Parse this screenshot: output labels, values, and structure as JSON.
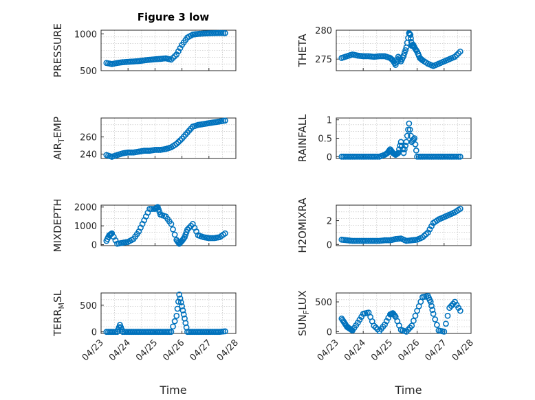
{
  "figure": {
    "title": "Figure 3 low",
    "xlabel": "Time",
    "xtick_labels": [
      "04/23",
      "04/24",
      "04/25",
      "04/26",
      "04/27",
      "04/28"
    ],
    "marker_color": "#0072BD"
  },
  "chart_data": [
    {
      "type": "scatter",
      "ylabel": "PRESSURE",
      "title": "Figure 3 low",
      "xlim": [
        0,
        5
      ],
      "ylim": [
        500,
        1050
      ],
      "yticks": [
        500,
        1000
      ],
      "ytick_labels": [
        "500",
        "1000"
      ],
      "x": [
        0.2,
        0.4,
        0.6,
        0.8,
        1.0,
        1.2,
        1.4,
        1.6,
        1.8,
        2.0,
        2.2,
        2.4,
        2.6,
        2.8,
        3.0,
        3.2,
        3.4,
        3.6,
        3.8,
        4.0,
        4.2,
        4.4,
        4.6
      ],
      "y": [
        605,
        590,
        605,
        615,
        620,
        625,
        630,
        640,
        648,
        655,
        660,
        668,
        650,
        720,
        850,
        950,
        990,
        1000,
        1005,
        1008,
        1010,
        1012,
        1010
      ]
    },
    {
      "type": "scatter",
      "ylabel": "THETA",
      "xlim": [
        0,
        5
      ],
      "ylim": [
        273,
        280
      ],
      "yticks": [
        275,
        280
      ],
      "ytick_labels": [
        "275",
        "280"
      ],
      "x": [
        0.2,
        0.4,
        0.6,
        0.8,
        1.0,
        1.2,
        1.4,
        1.6,
        1.8,
        2.0,
        2.1,
        2.2,
        2.3,
        2.4,
        2.5,
        2.6,
        2.7,
        2.75,
        2.8,
        2.85,
        2.9,
        3.0,
        3.1,
        3.2,
        3.4,
        3.6,
        3.8,
        4.0,
        4.2,
        4.4,
        4.6
      ],
      "y": [
        275.2,
        275.5,
        275.8,
        275.6,
        275.5,
        275.5,
        275.4,
        275.5,
        275.5,
        275.2,
        274.8,
        274.0,
        275.4,
        274.6,
        275.6,
        277.0,
        279.5,
        279.2,
        277.3,
        277.5,
        277.0,
        276.3,
        275.2,
        274.8,
        274.2,
        273.8,
        274.2,
        274.6,
        275.0,
        275.4,
        276.3
      ]
    },
    {
      "type": "scatter",
      "ylabel": "AIR_TEMP",
      "ylabel_parts": [
        "AIR",
        "T",
        "EMP"
      ],
      "xlim": [
        0,
        5
      ],
      "ylim": [
        235,
        282
      ],
      "yticks": [
        240,
        260
      ],
      "ytick_labels": [
        "240",
        "260"
      ],
      "x": [
        0.2,
        0.4,
        0.6,
        0.8,
        1.0,
        1.2,
        1.4,
        1.6,
        1.8,
        2.0,
        2.2,
        2.4,
        2.6,
        2.8,
        3.0,
        3.2,
        3.4,
        3.6,
        3.8,
        4.0,
        4.2,
        4.4,
        4.6
      ],
      "y": [
        239,
        237,
        239,
        241,
        242,
        242,
        243,
        244,
        244,
        245,
        245,
        246,
        248,
        252,
        258,
        265,
        272,
        274,
        275,
        276,
        277,
        278,
        279
      ]
    },
    {
      "type": "scatter",
      "ylabel": "RAINFALL",
      "xlim": [
        0,
        5
      ],
      "ylim": [
        -0.05,
        1.05
      ],
      "yticks": [
        0,
        0.5,
        1
      ],
      "ytick_labels": [
        "0",
        "0.5",
        "1"
      ],
      "x": [
        0.2,
        0.4,
        0.6,
        0.8,
        1.0,
        1.2,
        1.4,
        1.6,
        1.8,
        1.9,
        2.0,
        2.1,
        2.2,
        2.3,
        2.4,
        2.5,
        2.6,
        2.7,
        2.8,
        2.9,
        3.0,
        3.2,
        3.4,
        3.6,
        3.8,
        4.0,
        4.2,
        4.4,
        4.6
      ],
      "y": [
        0,
        0,
        0,
        0,
        0,
        0,
        0,
        0,
        0.05,
        0.1,
        0.2,
        0.1,
        0.05,
        0.1,
        0.4,
        0.1,
        0.4,
        0.9,
        0.4,
        0.5,
        0,
        0,
        0,
        0,
        0,
        0,
        0,
        0,
        0
      ]
    },
    {
      "type": "scatter",
      "ylabel": "MIXDEPTH",
      "xlim": [
        0,
        5
      ],
      "ylim": [
        -50,
        2100
      ],
      "yticks": [
        0,
        1000,
        2000
      ],
      "ytick_labels": [
        "0",
        "1000",
        "2000"
      ],
      "x": [
        0.2,
        0.3,
        0.4,
        0.6,
        0.8,
        1.0,
        1.2,
        1.4,
        1.6,
        1.8,
        2.0,
        2.1,
        2.2,
        2.4,
        2.6,
        2.8,
        2.9,
        3.0,
        3.1,
        3.2,
        3.4,
        3.6,
        3.8,
        4.0,
        4.2,
        4.4,
        4.6
      ],
      "y": [
        200,
        500,
        600,
        50,
        100,
        150,
        300,
        700,
        1300,
        1900,
        1900,
        2000,
        1600,
        1500,
        1100,
        250,
        50,
        200,
        400,
        800,
        1100,
        500,
        400,
        350,
        350,
        400,
        600
      ]
    },
    {
      "type": "scatter",
      "ylabel": "H2OMIXRA",
      "xlim": [
        0,
        5
      ],
      "ylim": [
        -0.1,
        3.3
      ],
      "yticks": [
        0,
        2
      ],
      "ytick_labels": [
        "0",
        "2"
      ],
      "x": [
        0.2,
        0.4,
        0.6,
        0.8,
        1.0,
        1.2,
        1.4,
        1.6,
        1.8,
        2.0,
        2.2,
        2.4,
        2.6,
        2.8,
        3.0,
        3.2,
        3.4,
        3.6,
        3.8,
        4.0,
        4.2,
        4.4,
        4.6
      ],
      "y": [
        0.4,
        0.35,
        0.3,
        0.3,
        0.3,
        0.3,
        0.3,
        0.3,
        0.35,
        0.35,
        0.45,
        0.5,
        0.3,
        0.35,
        0.4,
        0.6,
        1.0,
        1.8,
        2.1,
        2.3,
        2.5,
        2.7,
        3.0
      ]
    },
    {
      "type": "scatter",
      "ylabel": "TERR_MSL",
      "ylabel_parts": [
        "TERR",
        "M",
        "SL"
      ],
      "xlim": [
        0,
        5
      ],
      "ylim": [
        -30,
        730
      ],
      "yticks": [
        0,
        500
      ],
      "ytick_labels": [
        "0",
        "500"
      ],
      "x": [
        0.2,
        0.4,
        0.6,
        0.7,
        0.8,
        1.0,
        1.2,
        1.4,
        1.6,
        1.8,
        2.0,
        2.2,
        2.4,
        2.6,
        2.8,
        2.9,
        3.0,
        3.1,
        3.2,
        3.4,
        3.6,
        3.8,
        4.0,
        4.2,
        4.4,
        4.6
      ],
      "y": [
        0,
        0,
        0,
        130,
        0,
        0,
        0,
        0,
        0,
        0,
        0,
        0,
        0,
        0,
        300,
        700,
        480,
        250,
        0,
        0,
        0,
        0,
        0,
        0,
        0,
        10
      ]
    },
    {
      "type": "scatter",
      "ylabel": "SUN_FLUX",
      "ylabel_parts": [
        "SUN",
        "F",
        "LUX"
      ],
      "xlim": [
        0,
        5
      ],
      "ylim": [
        -30,
        650
      ],
      "yticks": [
        0,
        500
      ],
      "ytick_labels": [
        "0",
        "500"
      ],
      "x": [
        0.2,
        0.3,
        0.4,
        0.5,
        0.6,
        0.8,
        1.0,
        1.2,
        1.4,
        1.6,
        1.8,
        2.0,
        2.1,
        2.2,
        2.4,
        2.6,
        2.8,
        3.0,
        3.2,
        3.4,
        3.5,
        3.6,
        3.8,
        4.0,
        4.2,
        4.4,
        4.6
      ],
      "y": [
        220,
        150,
        80,
        50,
        20,
        150,
        300,
        320,
        100,
        10,
        120,
        290,
        310,
        250,
        30,
        0,
        100,
        350,
        580,
        600,
        500,
        300,
        20,
        0,
        400,
        500,
        350
      ]
    }
  ]
}
